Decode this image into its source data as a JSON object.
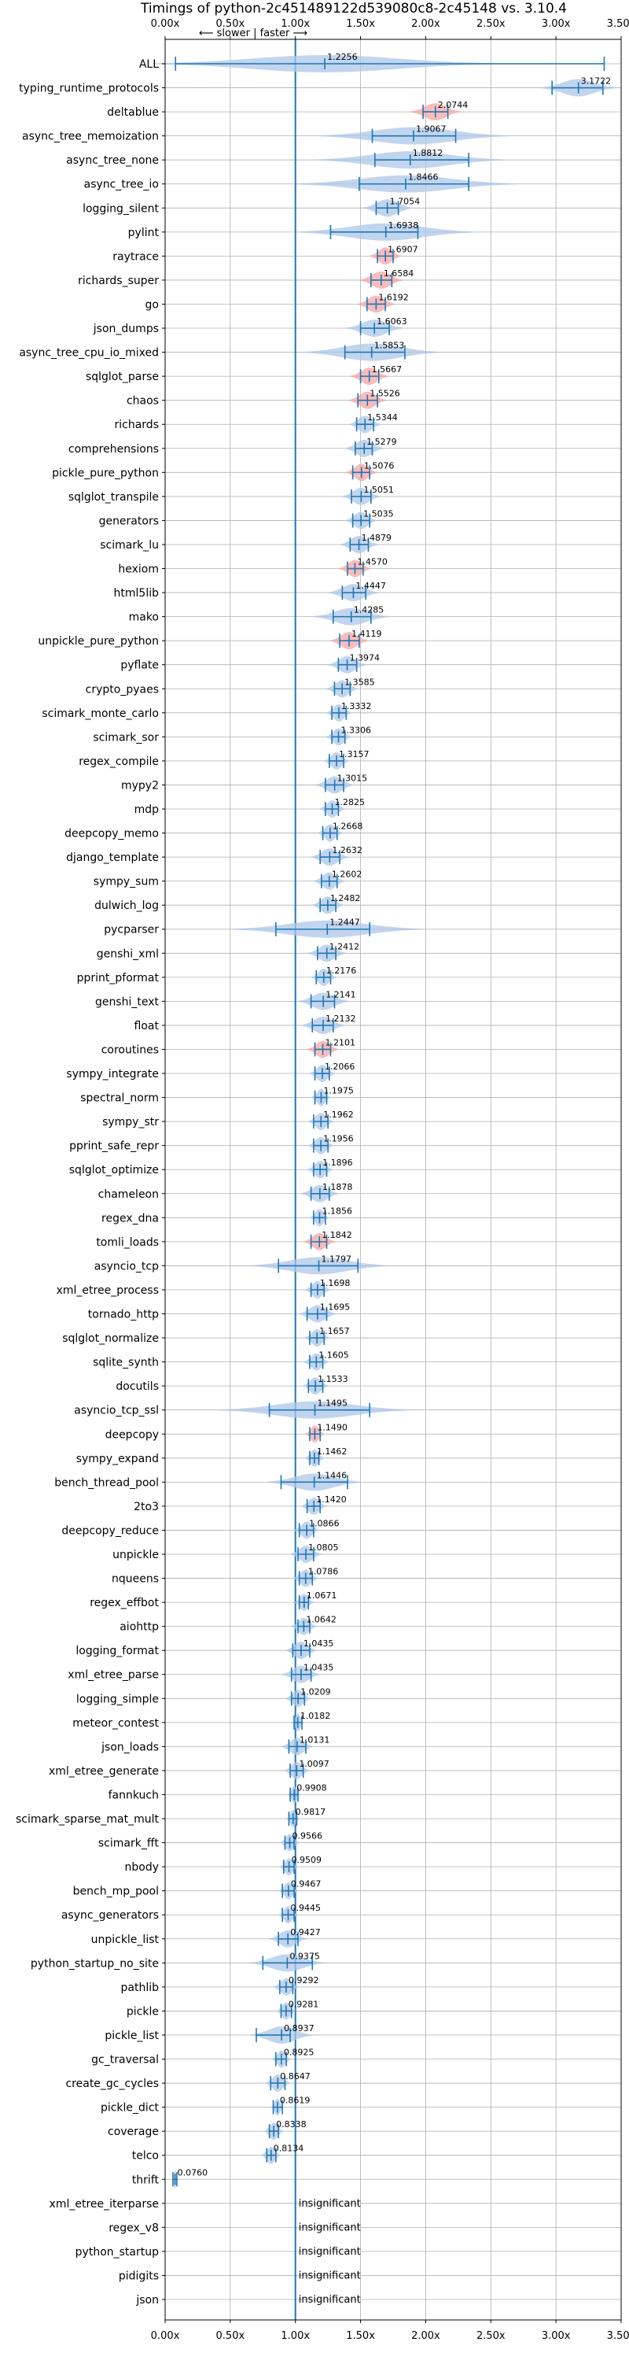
{
  "colors": {
    "baseline": "#1f77b4",
    "errorbar": "#1f77b4",
    "violin": "#aec7e8",
    "violin_slower": "#f4a6a6",
    "grid": "#b0b0b0",
    "text": "#000000"
  },
  "chart_data": {
    "type": "violin",
    "title": "Timings of python-2c451489122d539080c8-2c45148 vs. 3.10.4",
    "direction_label": "⟵ slower | faster ⟶",
    "insignificant_label": "insignificant",
    "orientation": "horizontal",
    "xlim": [
      0.0,
      3.5
    ],
    "x_ticks": [
      0.0,
      0.5,
      1.0,
      1.5,
      2.0,
      2.5,
      3.0,
      3.5
    ],
    "x_tick_labels": [
      "0.00x",
      "0.50x",
      "1.00x",
      "1.50x",
      "2.00x",
      "2.50x",
      "3.00x",
      "3.50x"
    ],
    "baseline": 1.0,
    "grid": true,
    "benchmarks": [
      {
        "name": "ALL",
        "value": 1.2256,
        "label": "1.2256",
        "lo": 0.08,
        "hi": 3.37,
        "spread": 0.55
      },
      {
        "name": "typing_runtime_protocols",
        "value": 3.1722,
        "label": "3.1722",
        "lo": 2.97,
        "hi": 3.36,
        "spread": 0.12
      },
      {
        "name": "deltablue",
        "value": 2.0744,
        "label": "2.0744",
        "lo": 1.98,
        "hi": 2.17,
        "spread": 0.08
      },
      {
        "name": "async_tree_memoization",
        "value": 1.9067,
        "label": "1.9067",
        "lo": 1.59,
        "hi": 2.23,
        "spread": 0.3
      },
      {
        "name": "async_tree_none",
        "value": 1.8812,
        "label": "1.8812",
        "lo": 1.61,
        "hi": 2.33,
        "spread": 0.3
      },
      {
        "name": "async_tree_io",
        "value": 1.8466,
        "label": "1.8466",
        "lo": 1.49,
        "hi": 2.33,
        "spread": 0.35
      },
      {
        "name": "logging_silent",
        "value": 1.7054,
        "label": "1.7054",
        "lo": 1.62,
        "hi": 1.79,
        "spread": 0.08
      },
      {
        "name": "pylint",
        "value": 1.6938,
        "label": "1.6938",
        "lo": 1.27,
        "hi": 1.94,
        "spread": 0.28
      },
      {
        "name": "raytrace",
        "value": 1.6907,
        "label": "1.6907",
        "lo": 1.63,
        "hi": 1.75,
        "spread": 0.05
      },
      {
        "name": "richards_super",
        "value": 1.6584,
        "label": "1.6584",
        "lo": 1.58,
        "hi": 1.74,
        "spread": 0.07
      },
      {
        "name": "go",
        "value": 1.6192,
        "label": "1.6192",
        "lo": 1.55,
        "hi": 1.69,
        "spread": 0.06
      },
      {
        "name": "json_dumps",
        "value": 1.6063,
        "label": "1.6063",
        "lo": 1.5,
        "hi": 1.72,
        "spread": 0.09
      },
      {
        "name": "async_tree_cpu_io_mixed",
        "value": 1.5853,
        "label": "1.5853",
        "lo": 1.38,
        "hi": 1.84,
        "spread": 0.22
      },
      {
        "name": "sqlglot_parse",
        "value": 1.5667,
        "label": "1.5667",
        "lo": 1.5,
        "hi": 1.64,
        "spread": 0.06
      },
      {
        "name": "chaos",
        "value": 1.5526,
        "label": "1.5526",
        "lo": 1.48,
        "hi": 1.63,
        "spread": 0.06
      },
      {
        "name": "richards",
        "value": 1.5344,
        "label": "1.5344",
        "lo": 1.47,
        "hi": 1.6,
        "spread": 0.05
      },
      {
        "name": "comprehensions",
        "value": 1.5279,
        "label": "1.5279",
        "lo": 1.46,
        "hi": 1.59,
        "spread": 0.06
      },
      {
        "name": "pickle_pure_python",
        "value": 1.5076,
        "label": "1.5076",
        "lo": 1.44,
        "hi": 1.57,
        "spread": 0.05
      },
      {
        "name": "sqlglot_transpile",
        "value": 1.5051,
        "label": "1.5051",
        "lo": 1.43,
        "hi": 1.58,
        "spread": 0.06
      },
      {
        "name": "generators",
        "value": 1.5035,
        "label": "1.5035",
        "lo": 1.44,
        "hi": 1.57,
        "spread": 0.05
      },
      {
        "name": "scimark_lu",
        "value": 1.4879,
        "label": "1.4879",
        "lo": 1.42,
        "hi": 1.56,
        "spread": 0.06
      },
      {
        "name": "hexiom",
        "value": 1.457,
        "label": "1.4570",
        "lo": 1.4,
        "hi": 1.52,
        "spread": 0.05
      },
      {
        "name": "html5lib",
        "value": 1.4447,
        "label": "1.4447",
        "lo": 1.36,
        "hi": 1.54,
        "spread": 0.08
      },
      {
        "name": "mako",
        "value": 1.4285,
        "label": "1.4285",
        "lo": 1.29,
        "hi": 1.58,
        "spread": 0.12
      },
      {
        "name": "unpickle_pure_python",
        "value": 1.4119,
        "label": "1.4119",
        "lo": 1.34,
        "hi": 1.49,
        "spread": 0.06
      },
      {
        "name": "pyflate",
        "value": 1.3974,
        "label": "1.3974",
        "lo": 1.33,
        "hi": 1.47,
        "spread": 0.06
      },
      {
        "name": "crypto_pyaes",
        "value": 1.3585,
        "label": "1.3585",
        "lo": 1.3,
        "hi": 1.42,
        "spread": 0.05
      },
      {
        "name": "scimark_monte_carlo",
        "value": 1.3332,
        "label": "1.3332",
        "lo": 1.28,
        "hi": 1.39,
        "spread": 0.04
      },
      {
        "name": "scimark_sor",
        "value": 1.3306,
        "label": "1.3306",
        "lo": 1.28,
        "hi": 1.38,
        "spread": 0.04
      },
      {
        "name": "regex_compile",
        "value": 1.3157,
        "label": "1.3157",
        "lo": 1.26,
        "hi": 1.37,
        "spread": 0.04
      },
      {
        "name": "mypy2",
        "value": 1.3015,
        "label": "1.3015",
        "lo": 1.23,
        "hi": 1.37,
        "spread": 0.06
      },
      {
        "name": "mdp",
        "value": 1.2825,
        "label": "1.2825",
        "lo": 1.23,
        "hi": 1.33,
        "spread": 0.04
      },
      {
        "name": "deepcopy_memo",
        "value": 1.2668,
        "label": "1.2668",
        "lo": 1.21,
        "hi": 1.32,
        "spread": 0.04
      },
      {
        "name": "django_template",
        "value": 1.2632,
        "label": "1.2632",
        "lo": 1.19,
        "hi": 1.34,
        "spread": 0.06
      },
      {
        "name": "sympy_sum",
        "value": 1.2602,
        "label": "1.2602",
        "lo": 1.2,
        "hi": 1.32,
        "spread": 0.05
      },
      {
        "name": "dulwich_log",
        "value": 1.2482,
        "label": "1.2482",
        "lo": 1.19,
        "hi": 1.31,
        "spread": 0.05
      },
      {
        "name": "pycparser",
        "value": 1.2447,
        "label": "1.2447",
        "lo": 0.85,
        "hi": 1.57,
        "spread": 0.3
      },
      {
        "name": "genshi_xml",
        "value": 1.2412,
        "label": "1.2412",
        "lo": 1.17,
        "hi": 1.31,
        "spread": 0.06
      },
      {
        "name": "pprint_pformat",
        "value": 1.2176,
        "label": "1.2176",
        "lo": 1.16,
        "hi": 1.27,
        "spread": 0.04
      },
      {
        "name": "genshi_text",
        "value": 1.2141,
        "label": "1.2141",
        "lo": 1.12,
        "hi": 1.3,
        "spread": 0.08
      },
      {
        "name": "float",
        "value": 1.2132,
        "label": "1.2132",
        "lo": 1.13,
        "hi": 1.29,
        "spread": 0.07
      },
      {
        "name": "coroutines",
        "value": 1.2101,
        "label": "1.2101",
        "lo": 1.15,
        "hi": 1.27,
        "spread": 0.05
      },
      {
        "name": "sympy_integrate",
        "value": 1.2066,
        "label": "1.2066",
        "lo": 1.15,
        "hi": 1.26,
        "spread": 0.04
      },
      {
        "name": "spectral_norm",
        "value": 1.1975,
        "label": "1.1975",
        "lo": 1.15,
        "hi": 1.24,
        "spread": 0.03
      },
      {
        "name": "sympy_str",
        "value": 1.1962,
        "label": "1.1962",
        "lo": 1.14,
        "hi": 1.25,
        "spread": 0.04
      },
      {
        "name": "pprint_safe_repr",
        "value": 1.1956,
        "label": "1.1956",
        "lo": 1.14,
        "hi": 1.25,
        "spread": 0.04
      },
      {
        "name": "sqlglot_optimize",
        "value": 1.1896,
        "label": "1.1896",
        "lo": 1.14,
        "hi": 1.24,
        "spread": 0.04
      },
      {
        "name": "chameleon",
        "value": 1.1878,
        "label": "1.1878",
        "lo": 1.12,
        "hi": 1.26,
        "spread": 0.06
      },
      {
        "name": "regex_dna",
        "value": 1.1856,
        "label": "1.1856",
        "lo": 1.14,
        "hi": 1.23,
        "spread": 0.03
      },
      {
        "name": "tomli_loads",
        "value": 1.1842,
        "label": "1.1842",
        "lo": 1.12,
        "hi": 1.24,
        "spread": 0.05
      },
      {
        "name": "asyncio_tcp",
        "value": 1.1797,
        "label": "1.1797",
        "lo": 0.87,
        "hi": 1.48,
        "spread": 0.22
      },
      {
        "name": "xml_etree_process",
        "value": 1.1698,
        "label": "1.1698",
        "lo": 1.12,
        "hi": 1.22,
        "spread": 0.04
      },
      {
        "name": "tornado_http",
        "value": 1.1695,
        "label": "1.1695",
        "lo": 1.09,
        "hi": 1.24,
        "spread": 0.06
      },
      {
        "name": "sqlglot_normalize",
        "value": 1.1657,
        "label": "1.1657",
        "lo": 1.11,
        "hi": 1.22,
        "spread": 0.04
      },
      {
        "name": "sqlite_synth",
        "value": 1.1605,
        "label": "1.1605",
        "lo": 1.11,
        "hi": 1.21,
        "spread": 0.04
      },
      {
        "name": "docutils",
        "value": 1.1533,
        "label": "1.1533",
        "lo": 1.1,
        "hi": 1.21,
        "spread": 0.04
      },
      {
        "name": "asyncio_tcp_ssl",
        "value": 1.1495,
        "label": "1.1495",
        "lo": 0.8,
        "hi": 1.57,
        "spread": 0.3
      },
      {
        "name": "deepcopy",
        "value": 1.149,
        "label": "1.1490",
        "lo": 1.11,
        "hi": 1.19,
        "spread": 0.03
      },
      {
        "name": "sympy_expand",
        "value": 1.1462,
        "label": "1.1462",
        "lo": 1.11,
        "hi": 1.18,
        "spread": 0.03
      },
      {
        "name": "bench_thread_pool",
        "value": 1.1446,
        "label": "1.1446",
        "lo": 0.89,
        "hi": 1.4,
        "spread": 0.15
      },
      {
        "name": "2to3",
        "value": 1.142,
        "label": "1.1420",
        "lo": 1.09,
        "hi": 1.19,
        "spread": 0.04
      },
      {
        "name": "deepcopy_reduce",
        "value": 1.0866,
        "label": "1.0866",
        "lo": 1.03,
        "hi": 1.14,
        "spread": 0.04
      },
      {
        "name": "unpickle",
        "value": 1.0805,
        "label": "1.0805",
        "lo": 1.02,
        "hi": 1.14,
        "spread": 0.05
      },
      {
        "name": "nqueens",
        "value": 1.0786,
        "label": "1.0786",
        "lo": 1.03,
        "hi": 1.13,
        "spread": 0.04
      },
      {
        "name": "regex_effbot",
        "value": 1.0671,
        "label": "1.0671",
        "lo": 1.03,
        "hi": 1.1,
        "spread": 0.03
      },
      {
        "name": "aiohttp",
        "value": 1.0642,
        "label": "1.0642",
        "lo": 1.02,
        "hi": 1.11,
        "spread": 0.04
      },
      {
        "name": "logging_format",
        "value": 1.0435,
        "label": "1.0435",
        "lo": 0.98,
        "hi": 1.11,
        "spread": 0.05
      },
      {
        "name": "xml_etree_parse",
        "value": 1.0435,
        "label": "1.0435",
        "lo": 0.97,
        "hi": 1.12,
        "spread": 0.06
      },
      {
        "name": "logging_simple",
        "value": 1.0209,
        "label": "1.0209",
        "lo": 0.97,
        "hi": 1.07,
        "spread": 0.04
      },
      {
        "name": "meteor_contest",
        "value": 1.0182,
        "label": "1.0182",
        "lo": 0.99,
        "hi": 1.05,
        "spread": 0.02
      },
      {
        "name": "json_loads",
        "value": 1.0131,
        "label": "1.0131",
        "lo": 0.95,
        "hi": 1.08,
        "spread": 0.05
      },
      {
        "name": "xml_etree_generate",
        "value": 1.0097,
        "label": "1.0097",
        "lo": 0.96,
        "hi": 1.06,
        "spread": 0.04
      },
      {
        "name": "fannkuch",
        "value": 0.9908,
        "label": "0.9908",
        "lo": 0.96,
        "hi": 1.02,
        "spread": 0.02
      },
      {
        "name": "scimark_sparse_mat_mult",
        "value": 0.9817,
        "label": "0.9817",
        "lo": 0.95,
        "hi": 1.01,
        "spread": 0.02
      },
      {
        "name": "scimark_fft",
        "value": 0.9566,
        "label": "0.9566",
        "lo": 0.92,
        "hi": 0.99,
        "spread": 0.03
      },
      {
        "name": "nbody",
        "value": 0.9509,
        "label": "0.9509",
        "lo": 0.91,
        "hi": 0.99,
        "spread": 0.03
      },
      {
        "name": "bench_mp_pool",
        "value": 0.9467,
        "label": "0.9467",
        "lo": 0.9,
        "hi": 0.99,
        "spread": 0.03
      },
      {
        "name": "async_generators",
        "value": 0.9445,
        "label": "0.9445",
        "lo": 0.9,
        "hi": 0.99,
        "spread": 0.03
      },
      {
        "name": "unpickle_list",
        "value": 0.9427,
        "label": "0.9427",
        "lo": 0.87,
        "hi": 1.02,
        "spread": 0.06
      },
      {
        "name": "python_startup_no_site",
        "value": 0.9375,
        "label": "0.9375",
        "lo": 0.75,
        "hi": 1.13,
        "spread": 0.12
      },
      {
        "name": "pathlib",
        "value": 0.9292,
        "label": "0.9292",
        "lo": 0.88,
        "hi": 0.98,
        "spread": 0.04
      },
      {
        "name": "pickle",
        "value": 0.9281,
        "label": "0.9281",
        "lo": 0.89,
        "hi": 0.97,
        "spread": 0.03
      },
      {
        "name": "pickle_list",
        "value": 0.8937,
        "label": "0.8937",
        "lo": 0.7,
        "hi": 0.96,
        "spread": 0.1
      },
      {
        "name": "gc_traversal",
        "value": 0.8925,
        "label": "0.8925",
        "lo": 0.85,
        "hi": 0.93,
        "spread": 0.03
      },
      {
        "name": "create_gc_cycles",
        "value": 0.8647,
        "label": "0.8647",
        "lo": 0.81,
        "hi": 0.92,
        "spread": 0.04
      },
      {
        "name": "pickle_dict",
        "value": 0.8619,
        "label": "0.8619",
        "lo": 0.83,
        "hi": 0.9,
        "spread": 0.02
      },
      {
        "name": "coverage",
        "value": 0.8338,
        "label": "0.8338",
        "lo": 0.8,
        "hi": 0.87,
        "spread": 0.03
      },
      {
        "name": "telco",
        "value": 0.8134,
        "label": "0.8134",
        "lo": 0.78,
        "hi": 0.85,
        "spread": 0.03
      },
      {
        "name": "thrift",
        "value": 0.076,
        "label": "0.0760",
        "lo": 0.06,
        "hi": 0.09,
        "spread": 0.01
      },
      {
        "name": "xml_etree_iterparse",
        "value": null,
        "label": "insignificant"
      },
      {
        "name": "regex_v8",
        "value": null,
        "label": "insignificant"
      },
      {
        "name": "python_startup",
        "value": null,
        "label": "insignificant"
      },
      {
        "name": "pidigits",
        "value": null,
        "label": "insignificant"
      },
      {
        "name": "json",
        "value": null,
        "label": "insignificant"
      }
    ]
  }
}
